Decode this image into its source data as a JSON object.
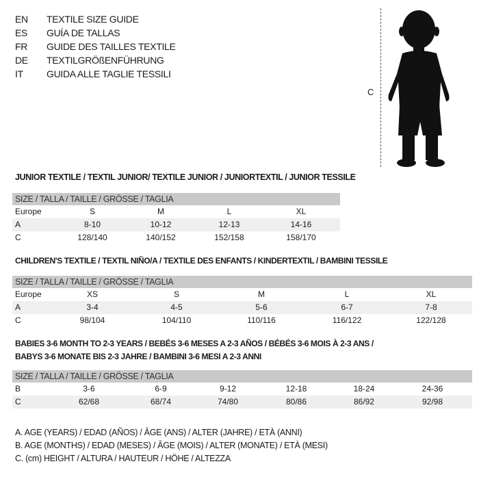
{
  "languages": [
    {
      "code": "EN",
      "text": "TEXTILE SIZE GUIDE"
    },
    {
      "code": "ES",
      "text": "GUÍA DE TALLAS"
    },
    {
      "code": "FR",
      "text": "GUIDE DES TAILLES TEXTILE"
    },
    {
      "code": "DE",
      "text": "TEXTILGRÖßENFÜHRUNG"
    },
    {
      "code": "IT",
      "text": "GUIDA ALLE TAGLIE TESSILI"
    }
  ],
  "figure": {
    "measure_label": "C",
    "icon": "child-silhouette-icon"
  },
  "junior": {
    "title": "JUNIOR TEXTILE / TEXTIL JUNIOR/ TEXTILE JUNIOR / JUNIORTEXTIL / JUNIOR TESSILE",
    "header": "SIZE / TALLA / TAILLE / GRÖSSE / TAGLIA",
    "rows": [
      {
        "label": "Europe",
        "cells": [
          "S",
          "M",
          "L",
          "XL"
        ]
      },
      {
        "label": "A",
        "cells": [
          "8-10",
          "10-12",
          "12-13",
          "14-16"
        ]
      },
      {
        "label": "C",
        "cells": [
          "128/140",
          "140/152",
          "152/158",
          "158/170"
        ]
      }
    ]
  },
  "children": {
    "title": "CHILDREN'S TEXTILE / TEXTIL NIÑO/A / TEXTILE DES ENFANTS / KINDERTEXTIL / BAMBINI TESSILE",
    "header": "SIZE / TALLA / TAILLE / GRÖSSE / TAGLIA",
    "rows": [
      {
        "label": "Europe",
        "cells": [
          "XS",
          "S",
          "M",
          "L",
          "XL"
        ]
      },
      {
        "label": "A",
        "cells": [
          "3-4",
          "4-5",
          "5-6",
          "6-7",
          "7-8"
        ]
      },
      {
        "label": "C",
        "cells": [
          "98/104",
          "104/110",
          "110/116",
          "116/122",
          "122/128"
        ]
      }
    ]
  },
  "babies": {
    "title_line1": "BABIES 3-6 MONTH TO 2-3 YEARS / BEBÉS 3-6 MESES A 2-3 AÑOS / BÉBÉS 3-6 MOIS À 2-3 ANS /",
    "title_line2": "BABYS 3-6 MONATE BIS 2-3 JAHRE / BAMBINI 3-6 MESI A 2-3 ANNI",
    "header": "SIZE / TALLA / TAILLE / GRÖSSE / TAGLIA",
    "rows": [
      {
        "label": "B",
        "cells": [
          "3-6",
          "6-9",
          "9-12",
          "12-18",
          "18-24",
          "24-36"
        ]
      },
      {
        "label": "C",
        "cells": [
          "62/68",
          "68/74",
          "74/80",
          "80/86",
          "86/92",
          "92/98"
        ]
      }
    ]
  },
  "legend": [
    "A. AGE (YEARS) / EDAD (AÑOS) / ÂGE (ANS) / ALTER (JAHRE) / ETÀ (ANNI)",
    "B. AGE (MONTHS) / EDAD (MESES) / ÂGE (MOIS) / ALTER (MONATE) / ETÀ (MESI)",
    "C. (cm) HEIGHT / ALTURA / HAUTEUR / HÖHE / ALTEZZA"
  ]
}
